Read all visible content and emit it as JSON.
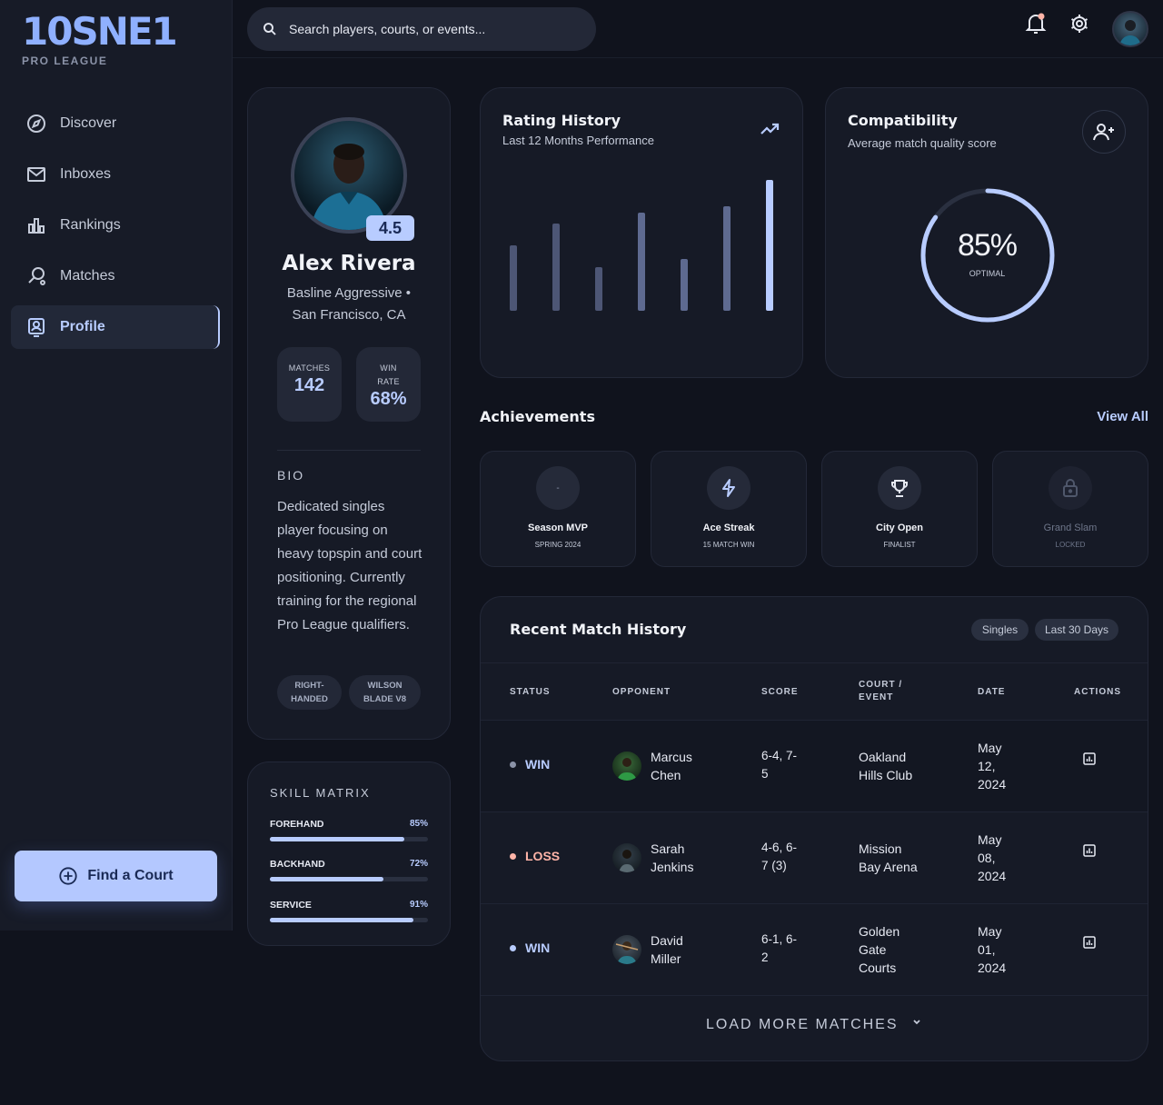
{
  "brand": {
    "logo": "10SNE1",
    "subtitle": "PRO LEAGUE"
  },
  "nav": {
    "items": [
      {
        "label": "Discover",
        "icon": "compass-icon"
      },
      {
        "label": "Inboxes",
        "icon": "mail-icon"
      },
      {
        "label": "Rankings",
        "icon": "bar-chart-icon"
      },
      {
        "label": "Matches",
        "icon": "racket-icon"
      },
      {
        "label": "Profile",
        "icon": "profile-badge-icon",
        "active": true
      }
    ],
    "cta": "Find a Court"
  },
  "search": {
    "placeholder": "Search players, courts, or events..."
  },
  "profile": {
    "rating": "4.5",
    "name": "Alex Rivera",
    "style_line1": "Basline Aggressive •",
    "style_line2": "San Francisco, CA",
    "stats": [
      {
        "label_line1": "MATCHES",
        "label_line2": "",
        "value": "142"
      },
      {
        "label_line1": "WIN",
        "label_line2": "RATE",
        "value": "68%"
      }
    ],
    "bio_title": "BIO",
    "bio": "Dedicated singles player focusing on heavy topspin and court positioning. Currently training for the regional Pro League qualifiers.",
    "tags": [
      {
        "line1": "RIGHT-",
        "line2": "HANDED"
      },
      {
        "line1": "WILSON",
        "line2": "BLADE V8"
      }
    ]
  },
  "skills": {
    "title": "SKILL MATRIX",
    "items": [
      {
        "name": "FOREHAND",
        "label": "85%",
        "value": 0.85
      },
      {
        "name": "BACKHAND",
        "label": "72%",
        "value": 0.72
      },
      {
        "name": "SERVICE",
        "label": "91%",
        "value": 0.91
      }
    ]
  },
  "rating_history": {
    "title": "Rating History",
    "subtitle": "Last 12 Months Performance"
  },
  "chart_data": {
    "type": "bar",
    "values": [
      0.48,
      0.64,
      0.32,
      0.72,
      0.38,
      0.77,
      0.96
    ],
    "ylim": [
      0,
      1
    ],
    "highlight_last": true,
    "colors": {
      "normal": "#4d5675",
      "mid": "#5e6a90",
      "highlight": "#b8ccff"
    }
  },
  "compatibility": {
    "title": "Compatibility",
    "subtitle": "Average match quality score",
    "value_label": "85%",
    "value": 0.85,
    "status": "OPTIMAL"
  },
  "achievements": {
    "title": "Achievements",
    "view_all": "View All",
    "items": [
      {
        "name": "Season MVP",
        "sub": "SPRING 2024",
        "icon": "-",
        "locked": false
      },
      {
        "name": "Ace Streak",
        "sub": "15 MATCH WIN",
        "icon": "lightning-icon",
        "locked": false
      },
      {
        "name": "City Open",
        "sub": "FINALIST",
        "icon": "trophy-icon",
        "locked": false
      },
      {
        "name": "Grand Slam",
        "sub": "LOCKED",
        "icon": "lock-icon",
        "locked": true
      }
    ]
  },
  "matches": {
    "title": "Recent Match History",
    "filters": [
      "Singles",
      "Last 30 Days"
    ],
    "headers": {
      "status": "STATUS",
      "opponent": "OPPONENT",
      "score": "SCORE",
      "court_line1": "COURT /",
      "court_line2": "EVENT",
      "date": "DATE",
      "actions": "ACTIONS"
    },
    "rows": [
      {
        "status": "WIN",
        "opp_first": "Marcus",
        "opp_last": "Chen",
        "score_l1": "6-4, 7-",
        "score_l2": "5",
        "court_l1": "Oakland",
        "court_l2": "Hills Club",
        "court_l3": "",
        "date_l1": "May",
        "date_l2": "12,",
        "date_l3": "2024"
      },
      {
        "status": "LOSS",
        "opp_first": "Sarah",
        "opp_last": "Jenkins",
        "score_l1": "4-6, 6-",
        "score_l2": "7 (3)",
        "court_l1": "Mission",
        "court_l2": "Bay Arena",
        "court_l3": "",
        "date_l1": "May",
        "date_l2": "08,",
        "date_l3": "2024"
      },
      {
        "status": "WIN",
        "opp_first": "David",
        "opp_last": "Miller",
        "score_l1": "6-1, 6-",
        "score_l2": "2",
        "court_l1": "Golden",
        "court_l2": "Gate",
        "court_l3": "Courts",
        "date_l1": "May",
        "date_l2": "01,",
        "date_l3": "2024"
      }
    ],
    "load_more": "LOAD MORE MATCHES",
    "colors": {
      "win": "#b8ccff",
      "loss": "#ffb4a8",
      "win_dot": "#8b93a8",
      "loss_dot": "#ffb4a8"
    }
  }
}
